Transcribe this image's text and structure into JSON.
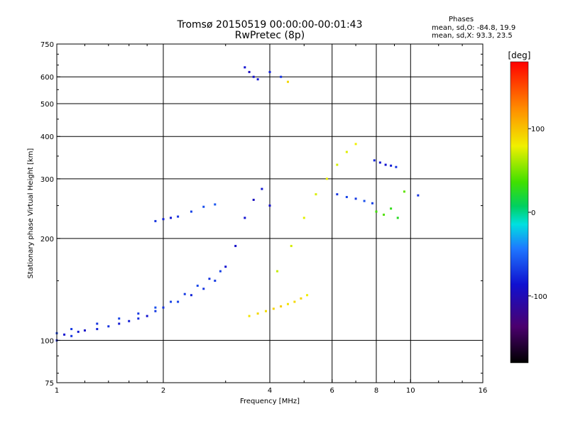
{
  "header": {
    "title": "Tromsø 20150519 00:00:00-00:01:43",
    "subtitle": "RwPretec (8p)"
  },
  "stats": {
    "heading": "Phases",
    "line_o": "mean, sd,O: -84.8, 19.9",
    "line_x": "mean, sd,X:  93.3, 23.5"
  },
  "colorbar": {
    "label": "[deg]",
    "range": [
      -180,
      180
    ],
    "ticks": [
      {
        "value": 100,
        "label": "100"
      },
      {
        "value": 0,
        "label": "0"
      },
      {
        "value": -100,
        "label": "-100"
      }
    ]
  },
  "chart_data": {
    "type": "scatter",
    "title": "Tromsø 20150519 00:00:00-00:01:43",
    "subtitle": "RwPretec (8p)",
    "xlabel": "Frequency [MHz]",
    "ylabel": "Stationary phase Virtual Height [km]",
    "x_scale": "log",
    "y_scale": "log",
    "xlim": [
      1,
      16
    ],
    "ylim": [
      75,
      750
    ],
    "grid": true,
    "x_ticks": [
      1,
      2,
      4,
      6,
      8,
      10,
      16
    ],
    "y_ticks": [
      75,
      100,
      200,
      300,
      400,
      500,
      600,
      750
    ],
    "x_gridlines": [
      2,
      4,
      6,
      8,
      10
    ],
    "y_gridlines": [
      100,
      200,
      300,
      400,
      500,
      600
    ],
    "color_variable": "phase [deg]",
    "color_range": [
      -180,
      180
    ],
    "series": [
      {
        "values": [
          [
            1.0,
            100,
            -105
          ],
          [
            1.05,
            104,
            -110
          ],
          [
            1.1,
            103,
            -100
          ],
          [
            1.15,
            106,
            -108
          ],
          [
            1.2,
            107,
            -112
          ],
          [
            1.3,
            108,
            -105
          ],
          [
            1.4,
            110,
            -100
          ],
          [
            1.5,
            112,
            -108
          ],
          [
            1.6,
            114,
            -106
          ],
          [
            1.7,
            116,
            -102
          ],
          [
            1.8,
            118,
            -110
          ],
          [
            1.9,
            122,
            -98
          ],
          [
            2.0,
            125,
            -100
          ],
          [
            2.2,
            130,
            -96
          ],
          [
            2.4,
            136,
            -104
          ],
          [
            2.6,
            142,
            -100
          ],
          [
            2.8,
            150,
            -98
          ],
          [
            3.0,
            165,
            -110
          ],
          [
            3.2,
            190,
            -112
          ],
          [
            3.4,
            230,
            -110
          ],
          [
            3.6,
            260,
            -115
          ],
          [
            3.8,
            280,
            -108
          ],
          [
            4.0,
            250,
            -112
          ]
        ]
      },
      {
        "values": [
          [
            1.0,
            105,
            -95
          ],
          [
            1.1,
            108,
            -98
          ],
          [
            1.3,
            112,
            -100
          ],
          [
            1.5,
            116,
            -95
          ],
          [
            1.7,
            120,
            -98
          ],
          [
            1.9,
            125,
            -92
          ],
          [
            2.1,
            130,
            -96
          ],
          [
            2.3,
            137,
            -98
          ],
          [
            2.5,
            145,
            -94
          ],
          [
            2.7,
            152,
            -100
          ],
          [
            2.9,
            160,
            -96
          ]
        ]
      },
      {
        "values": [
          [
            1.9,
            225,
            -100
          ],
          [
            2.0,
            228,
            -105
          ],
          [
            2.1,
            230,
            -108
          ],
          [
            2.2,
            232,
            -100
          ],
          [
            2.4,
            240,
            -95
          ],
          [
            2.6,
            248,
            -92
          ],
          [
            2.8,
            252,
            -90
          ]
        ]
      },
      {
        "values": [
          [
            3.4,
            640,
            -110
          ],
          [
            3.5,
            620,
            -115
          ],
          [
            3.6,
            600,
            -112
          ],
          [
            3.7,
            590,
            -108
          ],
          [
            4.0,
            620,
            -105
          ],
          [
            4.3,
            600,
            -100
          ],
          [
            4.5,
            580,
            110
          ]
        ]
      },
      {
        "values": [
          [
            3.5,
            118,
            105
          ],
          [
            3.7,
            120,
            110
          ],
          [
            3.9,
            122,
            108
          ],
          [
            4.1,
            124,
            112
          ],
          [
            4.3,
            126,
            115
          ],
          [
            4.5,
            128,
            105
          ],
          [
            4.7,
            130,
            110
          ],
          [
            4.9,
            133,
            112
          ],
          [
            5.1,
            136,
            100
          ]
        ]
      },
      {
        "values": [
          [
            4.2,
            160,
            85
          ],
          [
            4.6,
            190,
            90
          ],
          [
            5.0,
            230,
            95
          ],
          [
            5.4,
            270,
            92
          ],
          [
            5.8,
            300,
            98
          ],
          [
            6.2,
            330,
            90
          ],
          [
            6.6,
            360,
            94
          ],
          [
            7.0,
            380,
            100
          ]
        ]
      },
      {
        "values": [
          [
            6.2,
            270,
            -100
          ],
          [
            6.6,
            265,
            -95
          ],
          [
            7.0,
            262,
            -98
          ],
          [
            7.4,
            258,
            -92
          ],
          [
            7.8,
            254,
            -96
          ]
        ]
      },
      {
        "values": [
          [
            7.9,
            340,
            -105
          ],
          [
            8.2,
            335,
            -108
          ],
          [
            8.5,
            330,
            -110
          ],
          [
            8.8,
            328,
            -106
          ],
          [
            9.1,
            325,
            -100
          ]
        ]
      },
      {
        "values": [
          [
            8.0,
            240,
            40
          ],
          [
            8.4,
            235,
            45
          ],
          [
            8.8,
            245,
            30
          ],
          [
            9.2,
            230,
            25
          ],
          [
            9.6,
            275,
            50
          ],
          [
            10.5,
            268,
            -100
          ]
        ]
      }
    ]
  }
}
